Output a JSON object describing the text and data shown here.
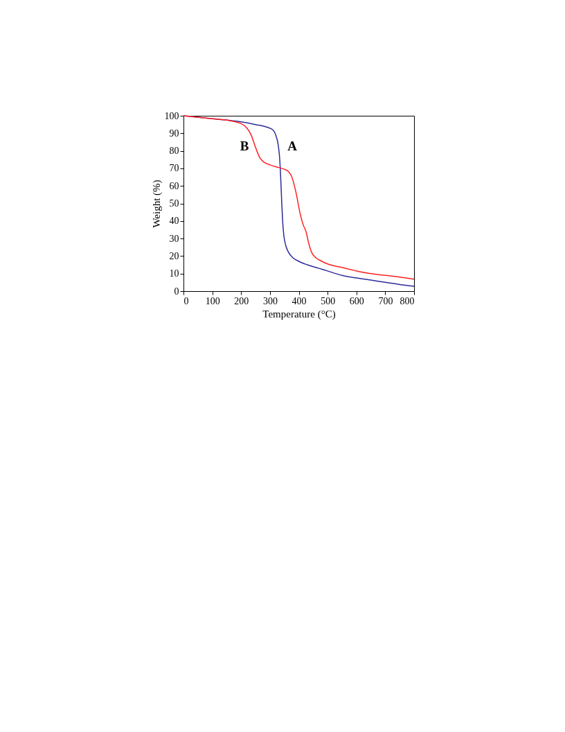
{
  "chart_data": {
    "type": "line",
    "xlabel": "Temperature (°C)",
    "ylabel": "Weight (%)",
    "xlim": [
      0,
      800
    ],
    "xticks": [
      0,
      100,
      200,
      300,
      400,
      500,
      600,
      700,
      800
    ],
    "ylim": [
      0,
      100
    ],
    "yticks": [
      0,
      10,
      20,
      30,
      40,
      50,
      60,
      70,
      80,
      90,
      100
    ],
    "grid": false,
    "legend": false,
    "marker": "none",
    "line_style": "solid",
    "series": [
      {
        "color": "#2b2b9a",
        "x": [
          0,
          100,
          200,
          250,
          290,
          310,
          320,
          328,
          334,
          338,
          341,
          344,
          348,
          355,
          365,
          380,
          400,
          430,
          470,
          500,
          550,
          600,
          650,
          700,
          750,
          800
        ],
        "values": [
          100,
          98.3,
          96.5,
          95,
          93.5,
          92,
          89,
          84,
          75,
          62,
          50,
          40,
          32,
          26,
          22,
          19,
          17,
          15,
          13,
          11.5,
          9,
          7.5,
          6.3,
          5,
          3.8,
          2.8
        ]
      },
      {
        "color": "#ff2020",
        "x": [
          0,
          100,
          150,
          200,
          220,
          235,
          250,
          265,
          280,
          300,
          330,
          350,
          365,
          375,
          385,
          392,
          400,
          408,
          415,
          425,
          435,
          445,
          460,
          480,
          500,
          550,
          600,
          650,
          700,
          750,
          800
        ],
        "values": [
          100,
          98.3,
          97.5,
          95.5,
          93,
          89,
          82,
          76,
          73.5,
          72,
          70.5,
          69.5,
          68,
          65.5,
          60,
          55,
          48,
          42,
          38,
          34,
          27,
          22,
          19,
          17,
          15.5,
          13.5,
          11.5,
          10,
          9,
          8,
          6.8
        ]
      }
    ],
    "annotations": [
      "B",
      "A"
    ]
  }
}
